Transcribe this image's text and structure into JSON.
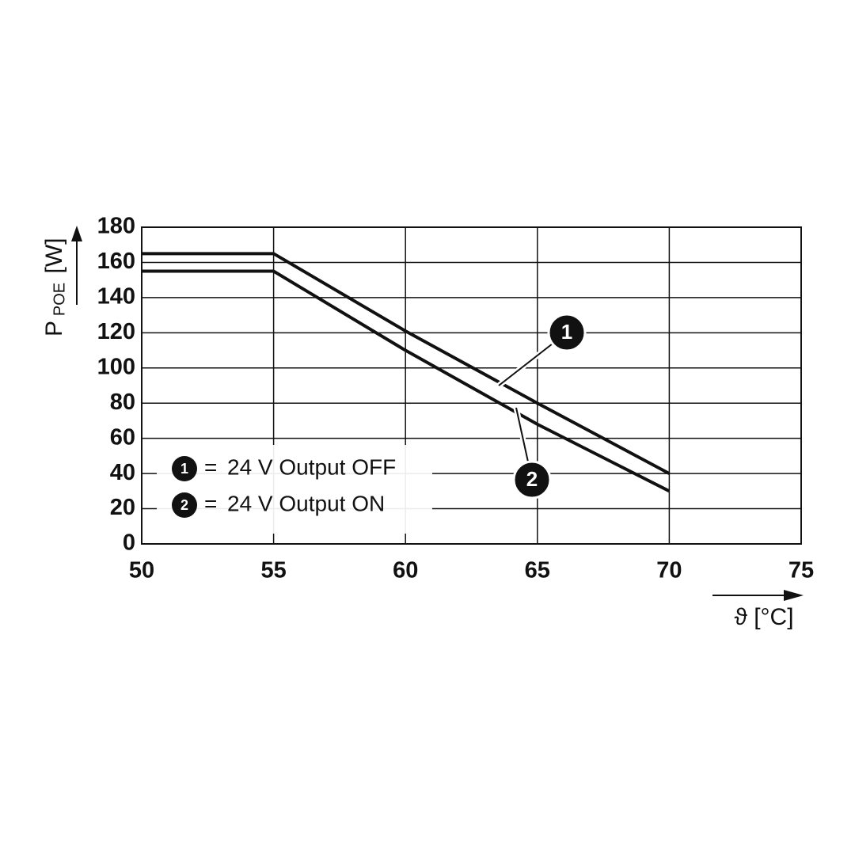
{
  "chart_data": {
    "type": "line",
    "ylabel": {
      "main": "P",
      "sub": "POE",
      "unit": "[W]"
    },
    "xlabel": "ϑ [°C]",
    "x": [
      50,
      55,
      60,
      65,
      70
    ],
    "series": [
      {
        "name": "24 V Output OFF",
        "marker_label": "1",
        "color": "#111111",
        "values": [
          165,
          165,
          121,
          80,
          40
        ]
      },
      {
        "name": "24 V Output ON",
        "marker_label": "2",
        "color": "#111111",
        "values": [
          155,
          155,
          110,
          68,
          30
        ]
      }
    ],
    "legend_separator": "=",
    "xlim": [
      50,
      75
    ],
    "xticks": [
      50,
      55,
      60,
      65,
      70,
      75
    ],
    "ylim": [
      0,
      180
    ],
    "yticks": [
      0,
      20,
      40,
      60,
      80,
      100,
      120,
      140,
      160,
      180
    ],
    "grid": true
  }
}
